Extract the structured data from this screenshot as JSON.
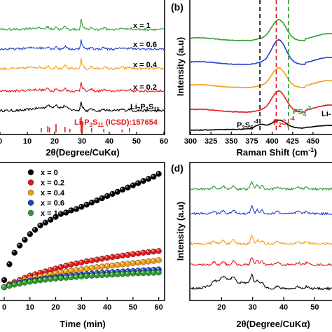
{
  "colors": {
    "black": "#000000",
    "red": "#e41a1c",
    "orange": "#f39c12",
    "blue": "#1f3fd1",
    "green": "#2e9e2e"
  },
  "panel_letters": {
    "b": "(b)",
    "d": "(d)"
  },
  "chart_data": [
    {
      "panel": "a",
      "type": "line",
      "xlabel": "2θ(Degree/CuKα)",
      "ylabel": "",
      "xlim": [
        0,
        60
      ],
      "x_ticks": [
        "0",
        "10",
        "20",
        "30",
        "40",
        "50",
        "60"
      ],
      "series": [
        {
          "name": "Li7P3S11",
          "color": "#000000"
        },
        {
          "name": "x = 0.2",
          "color": "#e41a1c"
        },
        {
          "name": "x = 0.4",
          "color": "#f39c12"
        },
        {
          "name": "x = 0.6",
          "color": "#1f3fd1"
        },
        {
          "name": "x = 1",
          "color": "#2e9e2e"
        }
      ],
      "reference": {
        "label": "Li7P3S11 (ICSD):157654",
        "peaks_2theta": [
          15.1,
          17.5,
          18.1,
          20.5,
          23.8,
          25.6,
          29.7,
          30.1,
          33.5,
          38.0,
          44.7,
          47.4
        ]
      }
    },
    {
      "panel": "b",
      "type": "line",
      "xlabel": "Raman Shift (cm⁻¹)",
      "ylabel": "Intensity (a.u)",
      "xlim": [
        300,
        475
      ],
      "x_ticks": [
        "300",
        "325",
        "350",
        "375",
        "400",
        "425",
        "450"
      ],
      "reference_lines": [
        {
          "x": 385,
          "color": "#000000",
          "label": "P2S6-4"
        },
        {
          "x": 405,
          "color": "#e41a1c",
          "label": "P2S7-4"
        },
        {
          "x": 420,
          "color": "#2e9e2e",
          "label": "PS4-3"
        }
      ],
      "series_colors": [
        "#000000",
        "#e41a1c",
        "#f39c12",
        "#1f3fd1",
        "#2e9e2e"
      ],
      "partial_label": "Li-"
    },
    {
      "panel": "c",
      "type": "scatter",
      "xlabel": "Time (min)",
      "ylabel": "",
      "xlim": [
        0,
        62
      ],
      "x_ticks": [
        "0",
        "10",
        "20",
        "30",
        "40",
        "50",
        "60"
      ],
      "legend_position": "top-left",
      "series": [
        {
          "name": "x = 0",
          "color": "#000000",
          "x": [
            0,
            2,
            4,
            6,
            8,
            10,
            12,
            14,
            16,
            18,
            20,
            22,
            24,
            26,
            28,
            30,
            32,
            34,
            36,
            38,
            40,
            42,
            44,
            46,
            48,
            50,
            52,
            54,
            56,
            58,
            60
          ],
          "y": [
            0.5,
            1.6,
            2.4,
            2.9,
            3.3,
            3.7,
            4.0,
            4.3,
            4.5,
            4.7,
            4.9,
            5.1,
            5.2,
            5.35,
            5.45,
            5.6,
            5.75,
            5.9,
            6.05,
            6.2,
            6.35,
            6.5,
            6.65,
            6.8,
            6.95,
            7.1,
            7.25,
            7.4,
            7.55,
            7.7,
            7.9
          ]
        },
        {
          "name": "x = 0.2",
          "color": "#e41a1c",
          "x": [
            0,
            2,
            4,
            6,
            8,
            10,
            12,
            14,
            16,
            18,
            20,
            22,
            24,
            26,
            28,
            30,
            32,
            34,
            36,
            38,
            40,
            42,
            44,
            46,
            48,
            50,
            52,
            54,
            56,
            58,
            60
          ],
          "y": [
            0.0,
            0.2,
            0.35,
            0.5,
            0.65,
            0.8,
            0.9,
            1.0,
            1.1,
            1.2,
            1.3,
            1.4,
            1.5,
            1.58,
            1.65,
            1.72,
            1.8,
            1.86,
            1.92,
            1.98,
            2.04,
            2.1,
            2.15,
            2.2,
            2.25,
            2.3,
            2.35,
            2.4,
            2.44,
            2.48,
            2.52
          ]
        },
        {
          "name": "x = 0.4",
          "color": "#f39c12",
          "x": [
            0,
            2,
            4,
            6,
            8,
            10,
            12,
            14,
            16,
            18,
            20,
            22,
            24,
            26,
            28,
            30,
            32,
            34,
            36,
            38,
            40,
            42,
            44,
            46,
            48,
            50,
            52,
            54,
            56,
            58,
            60
          ],
          "y": [
            0.0,
            0.15,
            0.28,
            0.4,
            0.5,
            0.6,
            0.68,
            0.75,
            0.82,
            0.9,
            0.97,
            1.03,
            1.09,
            1.14,
            1.19,
            1.24,
            1.29,
            1.34,
            1.39,
            1.43,
            1.47,
            1.51,
            1.55,
            1.59,
            1.63,
            1.67,
            1.71,
            1.75,
            1.79,
            1.83,
            1.88
          ]
        },
        {
          "name": "x = 0.6",
          "color": "#1f3fd1",
          "x": [
            0,
            2,
            4,
            6,
            8,
            10,
            12,
            14,
            16,
            18,
            20,
            22,
            24,
            26,
            28,
            30,
            32,
            34,
            36,
            38,
            40,
            42,
            44,
            46,
            48,
            50,
            52,
            54,
            56,
            58,
            60
          ],
          "y": [
            0.0,
            0.12,
            0.22,
            0.3,
            0.38,
            0.45,
            0.5,
            0.55,
            0.6,
            0.65,
            0.7,
            0.74,
            0.78,
            0.82,
            0.85,
            0.88,
            0.91,
            0.94,
            0.97,
            1.0,
            1.03,
            1.05,
            1.07,
            1.09,
            1.11,
            1.13,
            1.15,
            1.17,
            1.19,
            1.21,
            1.23
          ]
        },
        {
          "name": "x = 1",
          "color": "#2e9e2e",
          "x": [
            0,
            2,
            4,
            6,
            8,
            10,
            12,
            14,
            16,
            18,
            20,
            22,
            24,
            26,
            28,
            30,
            32,
            34,
            36,
            38,
            40,
            42,
            44,
            46,
            48,
            50,
            52,
            54,
            56,
            58,
            60
          ],
          "y": [
            0.0,
            0.1,
            0.18,
            0.25,
            0.32,
            0.38,
            0.43,
            0.48,
            0.52,
            0.56,
            0.6,
            0.63,
            0.66,
            0.69,
            0.72,
            0.75,
            0.78,
            0.8,
            0.82,
            0.84,
            0.86,
            0.88,
            0.9,
            0.92,
            0.94,
            0.96,
            0.97,
            0.98,
            0.99,
            1.0,
            1.02
          ]
        }
      ]
    },
    {
      "panel": "d",
      "type": "line",
      "xlabel": "2θ(Degree/CuKα)",
      "ylabel": "Intensity (a.u)",
      "xlim": [
        10,
        56
      ],
      "x_ticks": [
        "20",
        "30",
        "40",
        "50"
      ],
      "series_colors": [
        "#000000",
        "#e41a1c",
        "#f39c12",
        "#1f3fd1",
        "#2e9e2e"
      ]
    }
  ]
}
